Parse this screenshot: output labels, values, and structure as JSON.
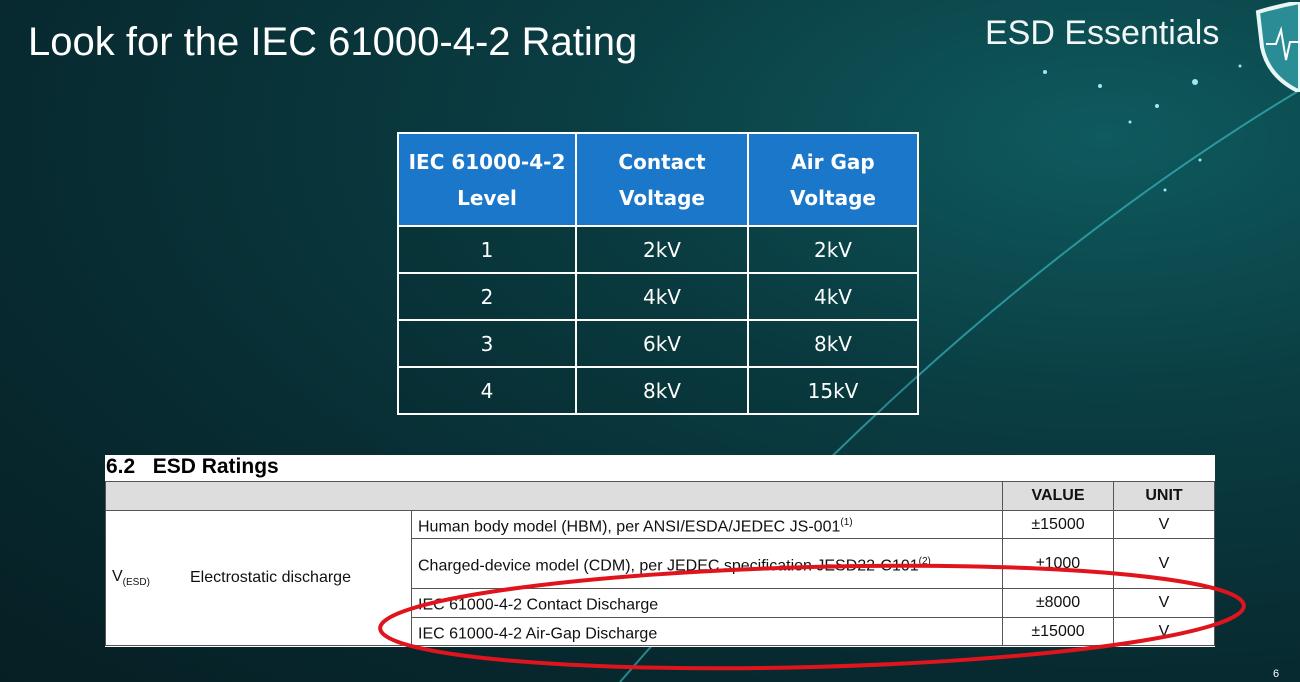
{
  "slide": {
    "title": "Look for the IEC 61000-4-2 Rating",
    "brand": "ESD Essentials",
    "page_number": "6",
    "logo_icon": "shield-heartbeat-icon",
    "accent": "#1a77c9",
    "highlight": "#e0141c"
  },
  "levels_table": {
    "headers": [
      "IEC 61000-4-2 Level",
      "Contact Voltage",
      "Air Gap Voltage"
    ],
    "rows": [
      [
        "1",
        "2kV",
        "2kV"
      ],
      [
        "2",
        "4kV",
        "4kV"
      ],
      [
        "3",
        "6kV",
        "8kV"
      ],
      [
        "4",
        "8kV",
        "15kV"
      ]
    ]
  },
  "esd_ratings": {
    "title": "6.2   ESD Ratings",
    "headers": [
      "VALUE",
      "UNIT"
    ],
    "symbol": "V",
    "symbol_sub": "(ESD)",
    "parameter": "Electrostatic discharge",
    "rows": [
      {
        "desc": "Human body model (HBM), per ANSI/ESDA/JEDEC JS-001",
        "note": "(1)",
        "value": "±15000",
        "unit": "V"
      },
      {
        "desc": "Charged-device model (CDM), per JEDEC specification JESD22-C101",
        "note": "(2)",
        "value": "±1000",
        "unit": "V"
      },
      {
        "desc": "IEC 61000-4-2 Contact Discharge",
        "note": "",
        "value": "±8000",
        "unit": "V"
      },
      {
        "desc": "IEC 61000-4-2 Air-Gap Discharge",
        "note": "",
        "value": "±15000",
        "unit": "V"
      }
    ]
  }
}
